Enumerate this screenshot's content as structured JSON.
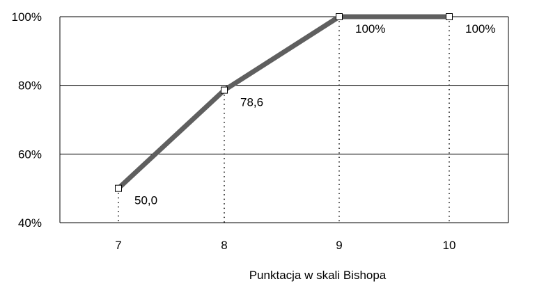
{
  "chart_data": {
    "type": "line",
    "xlabel": "Punktacja w skali Bishopa",
    "ylabel": "",
    "categories": [
      "7",
      "8",
      "9",
      "10"
    ],
    "values": [
      50.0,
      78.6,
      100,
      100
    ],
    "data_labels": [
      "50,0",
      "78,6",
      "100%",
      "100%"
    ],
    "ylim": [
      40,
      100
    ],
    "yticks": [
      40,
      60,
      80,
      100
    ],
    "ytick_labels": [
      "40%",
      "60%",
      "80%",
      "100%"
    ],
    "grid": true,
    "drop_lines": true,
    "marker": "square",
    "colors": {
      "line": "#5f5f5f",
      "grid": "#000000",
      "marker_fill": "#ffffff"
    }
  }
}
